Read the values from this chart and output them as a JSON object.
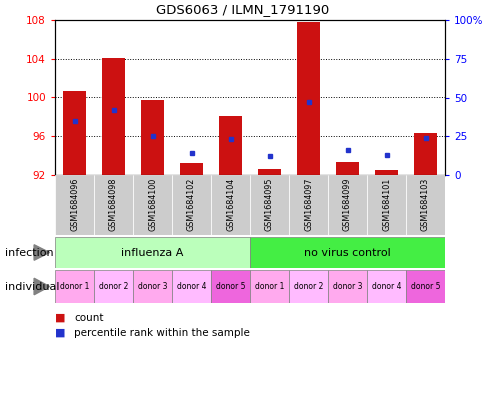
{
  "title": "GDS6063 / ILMN_1791190",
  "samples": [
    "GSM1684096",
    "GSM1684098",
    "GSM1684100",
    "GSM1684102",
    "GSM1684104",
    "GSM1684095",
    "GSM1684097",
    "GSM1684099",
    "GSM1684101",
    "GSM1684103"
  ],
  "count_values": [
    100.7,
    104.1,
    99.7,
    93.2,
    98.1,
    92.6,
    107.8,
    93.3,
    92.5,
    96.3
  ],
  "percentile_values": [
    35,
    42,
    25,
    14,
    23,
    12,
    47,
    16,
    13,
    24
  ],
  "ylim_left": [
    92,
    108
  ],
  "ylim_right": [
    0,
    100
  ],
  "yticks_left": [
    92,
    96,
    100,
    104,
    108
  ],
  "yticks_right": [
    0,
    25,
    50,
    75,
    100
  ],
  "ytick_labels_right": [
    "0",
    "25",
    "50",
    "75",
    "100%"
  ],
  "bar_color": "#cc1111",
  "dot_color": "#2233cc",
  "bar_bottom": 92,
  "bar_width": 0.6,
  "infection_groups": [
    {
      "label": "influenza A",
      "start": 0,
      "end": 5,
      "color": "#bbffbb"
    },
    {
      "label": "no virus control",
      "start": 5,
      "end": 10,
      "color": "#44ee44"
    }
  ],
  "individual_labels": [
    "donor 1",
    "donor 2",
    "donor 3",
    "donor 4",
    "donor 5",
    "donor 1",
    "donor 2",
    "donor 3",
    "donor 4",
    "donor 5"
  ],
  "individual_colors": [
    "#ffaaee",
    "#ffbbff",
    "#ffaaee",
    "#ffbbff",
    "#ee66dd",
    "#ffaaee",
    "#ffbbff",
    "#ffaaee",
    "#ffbbff",
    "#ee66dd"
  ],
  "sample_bg_color": "#cccccc",
  "bg_color": "#ffffff",
  "label_infection": "infection",
  "label_individual": "individual",
  "legend_count": "count",
  "legend_percentile": "percentile rank within the sample"
}
